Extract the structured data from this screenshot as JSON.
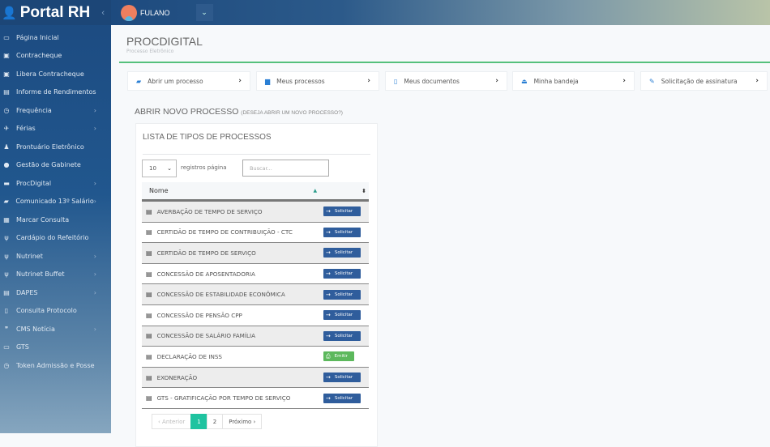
{
  "app": {
    "brand": "Portal RH",
    "user": "FULANO"
  },
  "sidebar": {
    "items": [
      {
        "label": "Página Inicial",
        "icon": "monitor-icon",
        "sub": false
      },
      {
        "label": "Contracheque",
        "icon": "money-icon",
        "sub": false
      },
      {
        "label": "Libera Contracheque",
        "icon": "money-icon",
        "sub": false
      },
      {
        "label": "Informe de Rendimentos",
        "icon": "file-icon",
        "sub": false
      },
      {
        "label": "Frequência",
        "icon": "clock-icon",
        "sub": true
      },
      {
        "label": "Férias",
        "icon": "plane-icon",
        "sub": true
      },
      {
        "label": "Prontuário Eletrônico",
        "icon": "user-icon",
        "sub": false
      },
      {
        "label": "Gestão de Gabinete",
        "icon": "circle-icon",
        "sub": false
      },
      {
        "label": "ProcDigital",
        "icon": "archive-icon",
        "sub": true
      },
      {
        "label": "Comunicado 13º Salário",
        "icon": "folder-icon",
        "sub": true
      },
      {
        "label": "Marcar Consulta",
        "icon": "calendar-icon",
        "sub": false
      },
      {
        "label": "Cardápio do Refeitório",
        "icon": "cutlery-icon",
        "sub": false
      },
      {
        "label": "Nutrinet",
        "icon": "cutlery-icon",
        "sub": true
      },
      {
        "label": "Nutrinet Buffet",
        "icon": "cutlery-icon",
        "sub": true
      },
      {
        "label": "DAPES",
        "icon": "file-icon",
        "sub": true
      },
      {
        "label": "Consulta Protocolo",
        "icon": "file-outline-icon",
        "sub": false
      },
      {
        "label": "CMS Notícia",
        "icon": "quote-icon",
        "sub": true
      },
      {
        "label": "GTS",
        "icon": "monitor-icon",
        "sub": false
      },
      {
        "label": "Token Admissão e Posse",
        "icon": "clock-icon",
        "sub": false
      }
    ]
  },
  "page": {
    "title": "PROCDIGITAL",
    "subtitle": "Processo Eletrônico"
  },
  "nav_cards": [
    {
      "label": "Abrir um processo",
      "icon": "folder-icon"
    },
    {
      "label": "Meus processos",
      "icon": "book-icon"
    },
    {
      "label": "Meus documentos",
      "icon": "document-icon"
    },
    {
      "label": "Minha bandeja",
      "icon": "inbox-icon"
    },
    {
      "label": "Solicitação de assinatura",
      "icon": "edit-icon"
    }
  ],
  "section": {
    "title": "ABRIR NOVO PROCESSO",
    "hint": "(DESEJA ABRIR UM NOVO PROCESSO?)"
  },
  "list": {
    "title": "LISTA DE TIPOS DE PROCESSOS",
    "page_length": "10",
    "page_length_label": "registros página",
    "search_placeholder": "Buscar...",
    "column": "Nome",
    "rows": [
      {
        "name": "AVERBAÇÃO DE TEMPO DE SERVIÇO",
        "action": "Solicitar"
      },
      {
        "name": "CERTIDÃO DE TEMPO DE CONTRIBUIÇÃO - CTC",
        "action": "Solicitar"
      },
      {
        "name": "CERTIDÃO DE TEMPO DE SERVIÇO",
        "action": "Solicitar"
      },
      {
        "name": "CONCESSÃO DE APOSENTADORIA",
        "action": "Solicitar"
      },
      {
        "name": "CONCESSÃO DE ESTABILIDADE ECONÔMICA",
        "action": "Solicitar"
      },
      {
        "name": "CONCESSÃO DE PENSÃO CPP",
        "action": "Solicitar"
      },
      {
        "name": "CONCESSÃO DE SALÁRIO FAMÍLIA",
        "action": "Solicitar"
      },
      {
        "name": "DECLARAÇÃO DE INSS",
        "action": "Emitir"
      },
      {
        "name": "EXONERAÇÃO",
        "action": "Solicitar"
      },
      {
        "name": "GTS - GRATIFICAÇÃO POR TEMPO DE SERVIÇO",
        "action": "Solicitar"
      }
    ],
    "pager": {
      "prev": "‹ Anterior",
      "pages": [
        "1",
        "2"
      ],
      "current": "1",
      "next": "Próximo ›"
    }
  },
  "colors": {
    "primary": "#2f5d9c",
    "success": "#5cb85c",
    "accent": "#1fc3a0",
    "line": "#55c07c"
  }
}
